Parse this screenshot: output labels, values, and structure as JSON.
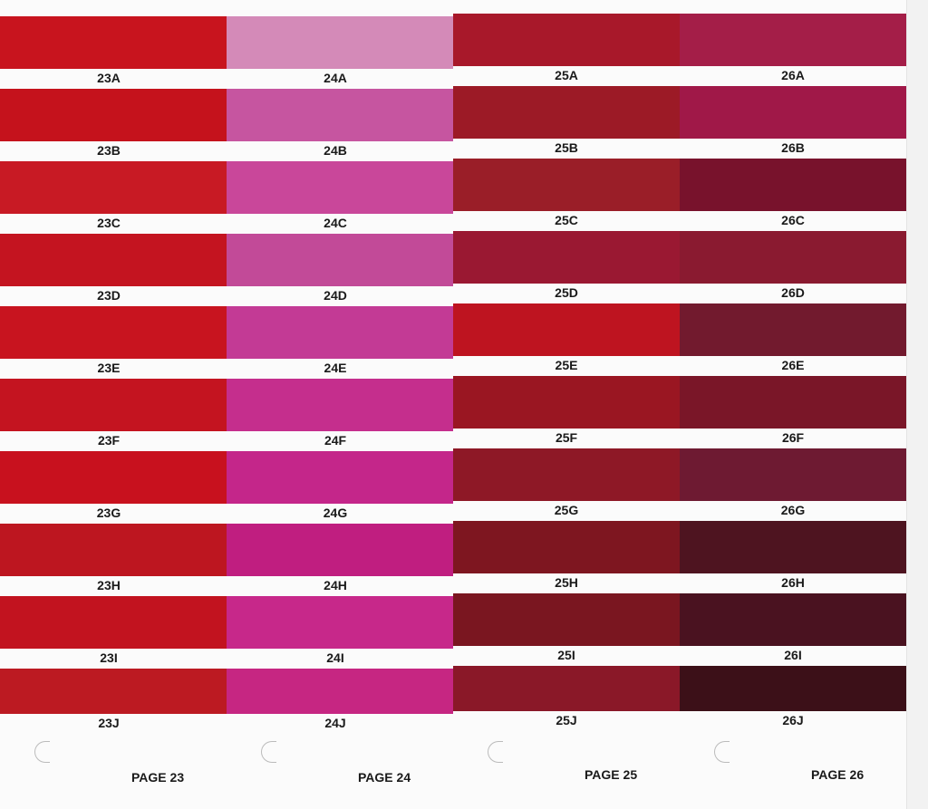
{
  "pages": [
    {
      "label": "PAGE 23",
      "swatches": [
        {
          "code": "23A",
          "color": "#c8141e"
        },
        {
          "code": "23B",
          "color": "#c5121c"
        },
        {
          "code": "23C",
          "color": "#c81a24"
        },
        {
          "code": "23D",
          "color": "#c41420"
        },
        {
          "code": "23E",
          "color": "#c8141f"
        },
        {
          "code": "23F",
          "color": "#c41420"
        },
        {
          "code": "23G",
          "color": "#c8111e"
        },
        {
          "code": "23H",
          "color": "#bd1620"
        },
        {
          "code": "23I",
          "color": "#c2131f"
        },
        {
          "code": "23J",
          "color": "#bc1a22"
        }
      ]
    },
    {
      "label": "PAGE 24",
      "swatches": [
        {
          "code": "24A",
          "color": "#d48ab8"
        },
        {
          "code": "24B",
          "color": "#c655a0"
        },
        {
          "code": "24C",
          "color": "#c9479a"
        },
        {
          "code": "24D",
          "color": "#c24a98"
        },
        {
          "code": "24E",
          "color": "#c33a95"
        },
        {
          "code": "24F",
          "color": "#c52e8d"
        },
        {
          "code": "24G",
          "color": "#c4268a"
        },
        {
          "code": "24H",
          "color": "#c01e80"
        },
        {
          "code": "24I",
          "color": "#c7288a"
        },
        {
          "code": "24J",
          "color": "#c62682"
        }
      ]
    },
    {
      "label": "PAGE 25",
      "swatches": [
        {
          "code": "25A",
          "color": "#a8182a"
        },
        {
          "code": "25B",
          "color": "#9c1a26"
        },
        {
          "code": "25C",
          "color": "#9a1e28"
        },
        {
          "code": "25D",
          "color": "#9a1832"
        },
        {
          "code": "25E",
          "color": "#be1420"
        },
        {
          "code": "25F",
          "color": "#9a1622"
        },
        {
          "code": "25G",
          "color": "#8e1826"
        },
        {
          "code": "25H",
          "color": "#7e1620"
        },
        {
          "code": "25I",
          "color": "#7a1620"
        },
        {
          "code": "25J",
          "color": "#8a1828"
        }
      ]
    },
    {
      "label": "PAGE 26",
      "swatches": [
        {
          "code": "26A",
          "color": "#a41e48"
        },
        {
          "code": "26B",
          "color": "#a01848"
        },
        {
          "code": "26C",
          "color": "#78122c"
        },
        {
          "code": "26D",
          "color": "#8a1a30"
        },
        {
          "code": "26E",
          "color": "#721a2e"
        },
        {
          "code": "26F",
          "color": "#7a1628"
        },
        {
          "code": "26G",
          "color": "#6e1a32"
        },
        {
          "code": "26H",
          "color": "#4e1420"
        },
        {
          "code": "26I",
          "color": "#4a1220"
        },
        {
          "code": "26J",
          "color": "#3c1018"
        }
      ]
    }
  ]
}
